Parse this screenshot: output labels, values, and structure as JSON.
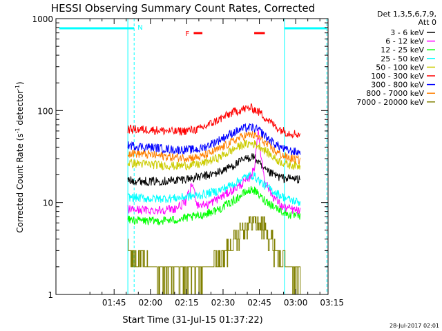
{
  "chart_data": {
    "type": "line",
    "title": "HESSI Observing Summary Count Rates, Corrected",
    "xlabel": "Start Time (31-Jul-15 01:37:22)",
    "ylabel_main": "Corrected Count Rate (s",
    "ylabel_sup1": "-1",
    "ylabel_mid": " detector",
    "ylabel_sup2": "-1",
    "ylabel_end": ")",
    "x_range_minutes": [
      -15.4,
      97
    ],
    "x_ticks": [
      {
        "value": 8.63,
        "label": "01:45"
      },
      {
        "value": 23.63,
        "label": "02:00"
      },
      {
        "value": 38.63,
        "label": "02:15"
      },
      {
        "value": 53.63,
        "label": "02:30"
      },
      {
        "value": 68.63,
        "label": "02:45"
      },
      {
        "value": 83.63,
        "label": "03:00"
      },
      {
        "value": 98.63,
        "label": "03:15"
      }
    ],
    "y_scale": "log",
    "ylim": [
      1,
      1000
    ],
    "y_ticks": [
      {
        "value": 1,
        "label": "1"
      },
      {
        "value": 10,
        "label": "10"
      },
      {
        "value": 100,
        "label": "100"
      },
      {
        "value": 1000,
        "label": "1000"
      }
    ],
    "legend_header": [
      "Det 1,3,5,6,7,9,",
      "Att 0"
    ],
    "legend_placement": "right",
    "timestamp": "28-Jul-2017 02:01",
    "markers": {
      "night": [
        {
          "label": "N",
          "start": -14,
          "end": 16.9,
          "dashed_at": 16.9
        },
        {
          "label": "",
          "start": 79,
          "end": 96.5,
          "dashed_at": 96.5
        }
      ],
      "flare": {
        "label": "F",
        "segments": [
          [
            41.5,
            45.1
          ],
          [
            66.5,
            70.9
          ]
        ]
      },
      "vlines": [
        {
          "x": 14.3,
          "style": "solid"
        },
        {
          "x": 16.9,
          "style": "dashed"
        },
        {
          "x": 79,
          "style": "solid"
        },
        {
          "x": 96.5,
          "style": "dashed"
        }
      ]
    },
    "series": [
      {
        "name": "3 - 6 keV",
        "color": "#000000",
        "t_start": 14.3,
        "t_end": 85.5,
        "times": [
          14.3,
          24,
          34,
          44,
          50,
          56,
          62,
          66,
          68.5,
          70,
          73,
          78,
          85.5
        ],
        "values": [
          17.5,
          17,
          17.5,
          19,
          20.5,
          24,
          29,
          32,
          27,
          23,
          21,
          18.5,
          18
        ]
      },
      {
        "name": "6 - 12 keV",
        "color": "#ff00ff",
        "t_start": 14.3,
        "t_end": 85.5,
        "times": [
          14.3,
          24,
          34,
          38,
          41,
          43,
          47,
          54,
          60,
          64,
          66.5,
          68,
          69.5,
          71,
          74,
          78,
          85.5
        ],
        "values": [
          8.5,
          8.2,
          8.6,
          10,
          16,
          9.5,
          9.5,
          12,
          15,
          18,
          23,
          60,
          30,
          17,
          12,
          9,
          8
        ]
      },
      {
        "name": "12 - 25 keV",
        "color": "#00ff00",
        "t_start": 14.3,
        "t_end": 85.5,
        "times": [
          14.3,
          24,
          34,
          44,
          52,
          58,
          63,
          66,
          70,
          75,
          80,
          85.5
        ],
        "values": [
          6.5,
          6.3,
          6.5,
          7.2,
          8.5,
          10.5,
          13,
          14,
          11,
          9,
          7.5,
          7
        ]
      },
      {
        "name": "25 - 50 keV",
        "color": "#00ffff",
        "t_start": 14.3,
        "t_end": 85.5,
        "times": [
          14.3,
          24,
          34,
          44,
          52,
          58,
          63,
          66,
          70,
          75,
          80,
          85.5
        ],
        "values": [
          11.5,
          11,
          11.2,
          12,
          13.5,
          16,
          19,
          20,
          16,
          13,
          11,
          10
        ]
      },
      {
        "name": "50 - 100 keV",
        "color": "#cccc00",
        "t_start": 14.3,
        "t_end": 85.5,
        "times": [
          14.3,
          24,
          34,
          44,
          52,
          58,
          62,
          66,
          69,
          72,
          76,
          80,
          85.5
        ],
        "values": [
          27,
          26,
          25,
          26,
          31,
          38,
          43,
          44,
          41,
          35,
          29,
          26,
          25
        ]
      },
      {
        "name": "100 - 300 keV",
        "color": "#ff0000",
        "t_start": 14.3,
        "t_end": 85.5,
        "times": [
          14.3,
          24,
          34,
          44,
          52,
          58,
          62,
          65.5,
          69,
          72,
          76,
          80,
          85.5
        ],
        "values": [
          63,
          62,
          59,
          63,
          80,
          97,
          104,
          107,
          95,
          80,
          65,
          58,
          55
        ]
      },
      {
        "name": "300 - 800 keV",
        "color": "#0000ff",
        "t_start": 14.3,
        "t_end": 85.5,
        "times": [
          14.3,
          24,
          34,
          44,
          52,
          58,
          62,
          65.5,
          69,
          72,
          76,
          80,
          85.5
        ],
        "values": [
          42,
          40,
          37.5,
          38,
          48,
          58,
          64,
          66,
          60,
          50,
          42,
          37,
          35
        ]
      },
      {
        "name": "800 - 7000 keV",
        "color": "#ff8000",
        "t_start": 14.3,
        "t_end": 85.5,
        "times": [
          14.3,
          24,
          34,
          44,
          52,
          58,
          62,
          65.5,
          69,
          72,
          76,
          80,
          85.5
        ],
        "values": [
          35,
          33,
          31,
          31,
          38,
          47,
          53,
          55,
          50,
          42,
          35,
          31,
          29
        ]
      },
      {
        "name": "7000 - 20000 keV",
        "color": "#808000",
        "t_start": 14.3,
        "t_end": 85.5,
        "times": [
          14.3,
          20,
          30,
          40,
          46,
          52,
          57,
          62,
          66,
          70,
          74,
          78,
          82,
          85.5
        ],
        "values": [
          2.8,
          2.2,
          1.7,
          1.6,
          1.7,
          2.3,
          3.5,
          5.5,
          6.5,
          5.5,
          3.5,
          2.3,
          1.8,
          1.6
        ]
      }
    ]
  }
}
